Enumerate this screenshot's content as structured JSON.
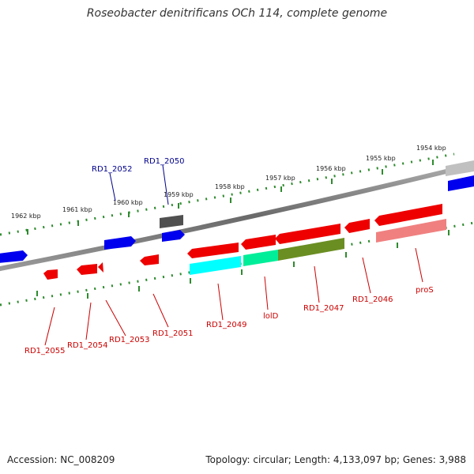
{
  "title": "Roseobacter denitrificans OCh 114, complete genome",
  "accession": "Accession: NC_008209",
  "topology": "Topology: circular; Length: 4,133,097 bp; Genes: 3,988",
  "colors": {
    "backbone": "#808080",
    "ticks": "#2e8b2e",
    "forward_label": "#00008b",
    "reverse_label": "#cc0000"
  },
  "scale_labels": [
    "1962 kbp",
    "1961 kbp",
    "1960 kbp",
    "1959 kbp",
    "1958 kbp",
    "1957 kbp",
    "1956 kbp",
    "1955 kbp",
    "1954 kbp"
  ],
  "gene_labels": {
    "forward": [
      "RD1_2052",
      "RD1_2050"
    ],
    "reverse": [
      "RD1_2055",
      "RD1_2054",
      "RD1_2053",
      "RD1_2051",
      "RD1_2049",
      "lolD",
      "RD1_2047",
      "RD1_2046",
      "proS"
    ]
  }
}
